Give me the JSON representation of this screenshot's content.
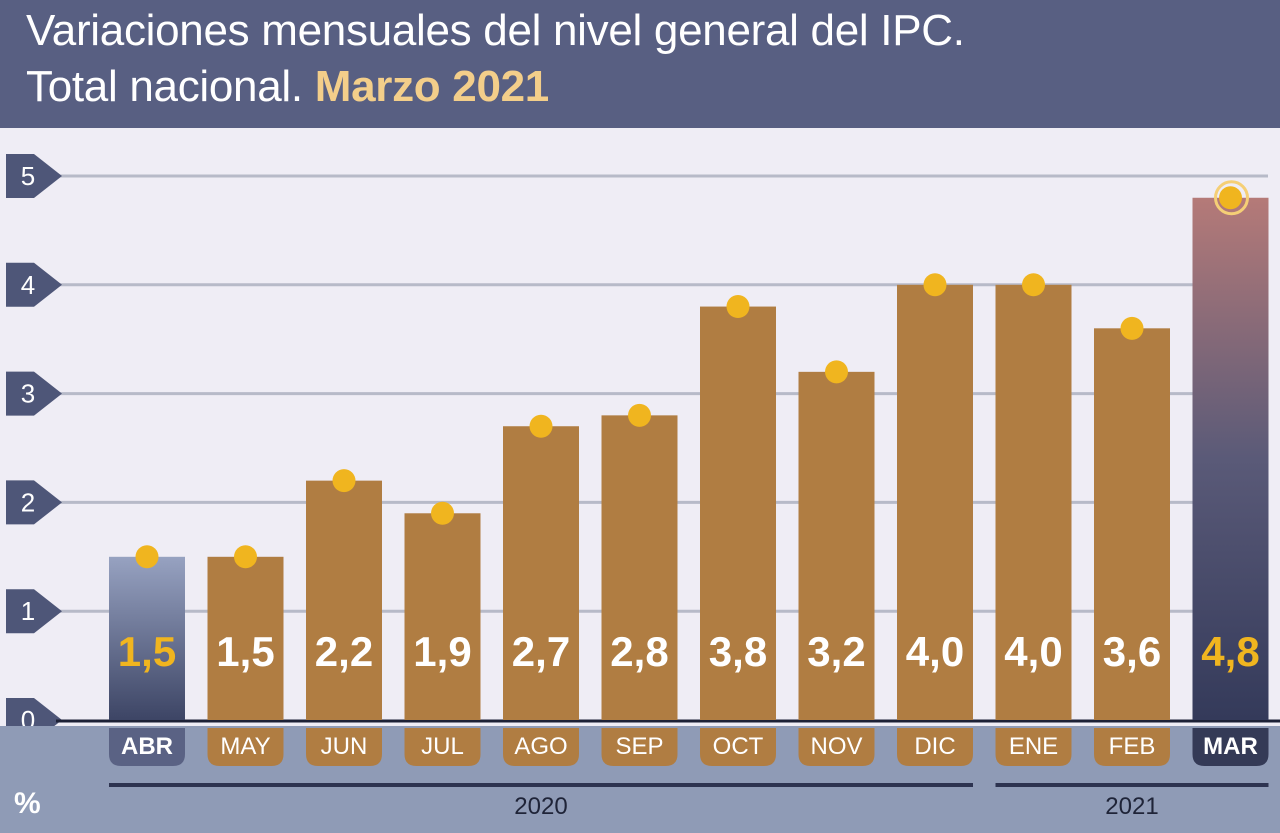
{
  "header": {
    "title_line_1": "Variaciones mensuales del nivel general del IPC.",
    "title_line_2": "Total nacional.",
    "title_highlight": "Marzo 2021"
  },
  "colors": {
    "header_bg": "#585f82",
    "plot_bg": "#efedf5",
    "axis_band": "#8f9bb6",
    "bar": "#b07d42",
    "bar_first_top": "#97a2c1",
    "bar_first_bottom": "#3d4565",
    "bar_last_top": "#b57a78",
    "bar_last_bottom": "#343a5a",
    "dot": "#f0b51f",
    "label_white": "#ffffff",
    "label_gold": "#f0b51f",
    "grid": "#b7bac8",
    "tick_badge": "#4e5678"
  },
  "chart_data": {
    "type": "bar",
    "categories": [
      "ABR",
      "MAY",
      "JUN",
      "JUL",
      "AGO",
      "SEP",
      "OCT",
      "NOV",
      "DIC",
      "ENE",
      "FEB",
      "MAR"
    ],
    "values": [
      1.5,
      1.5,
      2.2,
      1.9,
      2.7,
      2.8,
      3.8,
      3.2,
      4.0,
      4.0,
      3.6,
      4.8
    ],
    "value_labels": [
      "1,5",
      "1,5",
      "2,2",
      "1,9",
      "2,7",
      "2,8",
      "3,8",
      "3,2",
      "4,0",
      "4,0",
      "3,6",
      "4,8"
    ],
    "ylabel": "%",
    "ylim": [
      0,
      5
    ],
    "yticks": [
      "0",
      "1",
      "2",
      "3",
      "4",
      "5"
    ],
    "groups": [
      {
        "label": "2020",
        "from": 0,
        "to": 8
      },
      {
        "label": "2021",
        "from": 9,
        "to": 11
      }
    ],
    "highlight_first": true,
    "highlight_last": true,
    "grid": true,
    "legend": "none"
  }
}
